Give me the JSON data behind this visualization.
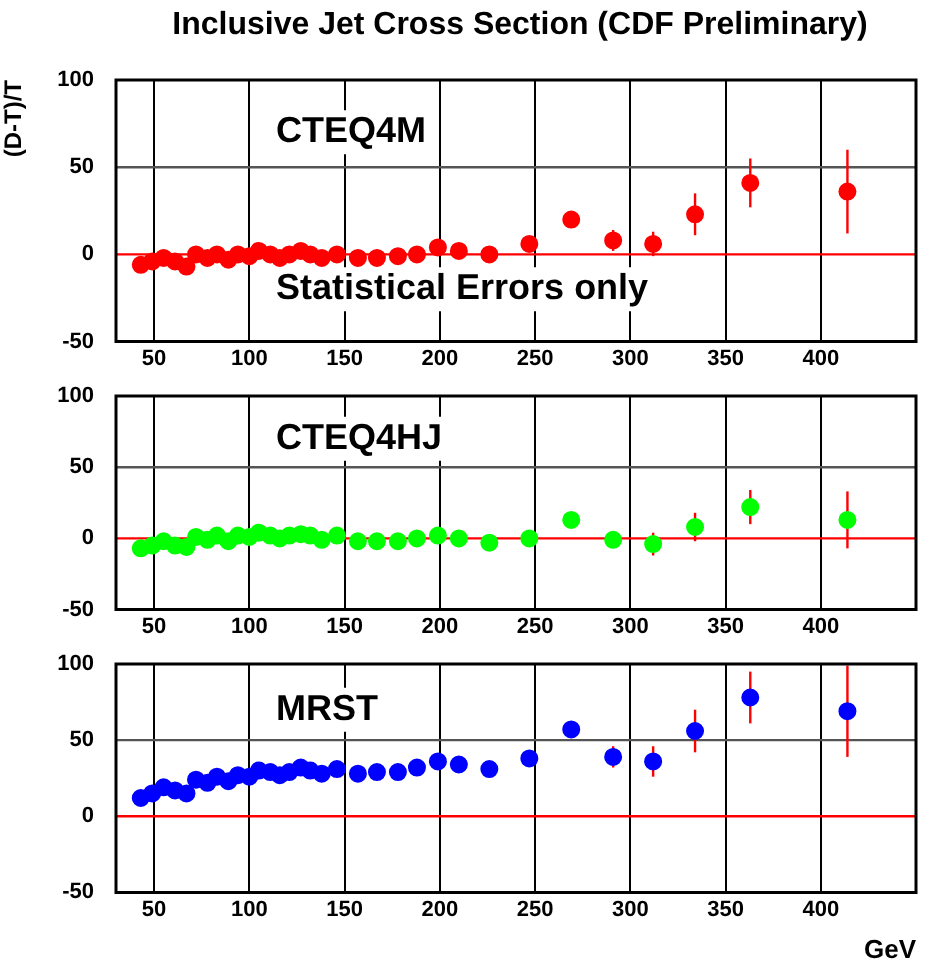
{
  "chart_data": [
    {
      "type": "scatter",
      "title": "Inclusive Jet Cross Section (CDF Preliminary)",
      "ylabel": "(D-T)/T",
      "annotations": [
        "CTEQ4M",
        "Statistical Errors only"
      ],
      "marker": "circle",
      "grid": "x",
      "legend": false,
      "xlim": [
        30,
        450
      ],
      "xticks": [
        50,
        100,
        150,
        200,
        250,
        300,
        350,
        400
      ],
      "ylim": [
        -50,
        100
      ],
      "yticks": [
        -50,
        0,
        50,
        100
      ],
      "ref_lines": [
        {
          "axis": "y",
          "value": 0,
          "color": "#ff0000"
        },
        {
          "axis": "y",
          "value": 50,
          "color": "#555555"
        }
      ],
      "x": [
        43,
        49,
        55,
        61,
        67,
        72,
        78,
        83,
        89,
        94,
        100,
        105,
        111,
        116,
        121,
        127,
        132,
        138,
        146,
        157,
        167,
        178,
        188,
        199,
        210,
        226,
        247,
        269,
        291,
        312,
        334,
        363,
        414
      ],
      "series": [
        {
          "color": "#ff0000",
          "values": [
            -6,
            -4,
            -2,
            -4,
            -7,
            0,
            -2,
            0,
            -3,
            0,
            -1,
            2,
            0,
            -2,
            0,
            2,
            0,
            -2,
            0,
            -2,
            -2,
            -1,
            0,
            4,
            2,
            0,
            6,
            20,
            8,
            6,
            23,
            41,
            36
          ],
          "errors": [
            null,
            null,
            null,
            null,
            null,
            null,
            null,
            null,
            null,
            null,
            null,
            null,
            null,
            null,
            null,
            null,
            null,
            null,
            null,
            null,
            null,
            null,
            null,
            null,
            null,
            null,
            null,
            null,
            6,
            7,
            12,
            14,
            24
          ]
        }
      ]
    },
    {
      "type": "scatter",
      "annotations": [
        "CTEQ4HJ"
      ],
      "marker": "circle",
      "grid": "x",
      "legend": false,
      "xlim": [
        30,
        450
      ],
      "xticks": [
        50,
        100,
        150,
        200,
        250,
        300,
        350,
        400
      ],
      "ylim": [
        -50,
        100
      ],
      "yticks": [
        -50,
        0,
        50,
        100
      ],
      "ref_lines": [
        {
          "axis": "y",
          "value": 0,
          "color": "#ff0000"
        },
        {
          "axis": "y",
          "value": 50,
          "color": "#555555"
        }
      ],
      "x": [
        43,
        49,
        55,
        61,
        67,
        72,
        78,
        83,
        89,
        94,
        100,
        105,
        111,
        116,
        121,
        127,
        132,
        138,
        146,
        157,
        167,
        178,
        188,
        199,
        210,
        226,
        247,
        269,
        291,
        312,
        334,
        363,
        414
      ],
      "series": [
        {
          "color": "#00ff00",
          "values": [
            -7,
            -5,
            -2,
            -5,
            -6,
            1,
            -1,
            2,
            -2,
            2,
            1,
            4,
            2,
            0,
            2,
            3,
            2,
            -1,
            2,
            -2,
            -2,
            -2,
            0,
            2,
            0,
            -3,
            0,
            13,
            -1,
            -4,
            8,
            22,
            13
          ],
          "errors": [
            null,
            null,
            null,
            null,
            null,
            null,
            null,
            null,
            null,
            null,
            null,
            null,
            null,
            null,
            null,
            null,
            null,
            null,
            null,
            null,
            null,
            null,
            null,
            null,
            null,
            null,
            null,
            null,
            null,
            8,
            10,
            12,
            20
          ]
        }
      ]
    },
    {
      "type": "scatter",
      "xlabel": "GeV",
      "annotations": [
        "MRST"
      ],
      "marker": "circle",
      "grid": "x",
      "legend": false,
      "xlim": [
        30,
        450
      ],
      "xticks": [
        50,
        100,
        150,
        200,
        250,
        300,
        350,
        400
      ],
      "ylim": [
        -50,
        100
      ],
      "yticks": [
        -50,
        0,
        50,
        100
      ],
      "ref_lines": [
        {
          "axis": "y",
          "value": 0,
          "color": "#ff0000"
        },
        {
          "axis": "y",
          "value": 50,
          "color": "#555555"
        }
      ],
      "x": [
        43,
        49,
        55,
        61,
        67,
        72,
        78,
        83,
        89,
        94,
        100,
        105,
        111,
        116,
        121,
        127,
        132,
        138,
        146,
        157,
        167,
        178,
        188,
        199,
        210,
        226,
        247,
        269,
        291,
        312,
        334,
        363,
        414
      ],
      "series": [
        {
          "color": "#0000ff",
          "values": [
            12,
            15,
            19,
            17,
            15,
            24,
            22,
            26,
            23,
            27,
            26,
            30,
            29,
            27,
            29,
            32,
            30,
            28,
            31,
            28,
            29,
            29,
            32,
            36,
            34,
            31,
            38,
            57,
            39,
            36,
            56,
            78,
            69
          ],
          "errors": [
            null,
            null,
            null,
            null,
            null,
            null,
            null,
            null,
            null,
            null,
            null,
            null,
            null,
            null,
            null,
            null,
            null,
            null,
            null,
            null,
            null,
            null,
            null,
            null,
            null,
            null,
            null,
            null,
            7,
            10,
            14,
            17,
            30
          ]
        }
      ]
    }
  ]
}
